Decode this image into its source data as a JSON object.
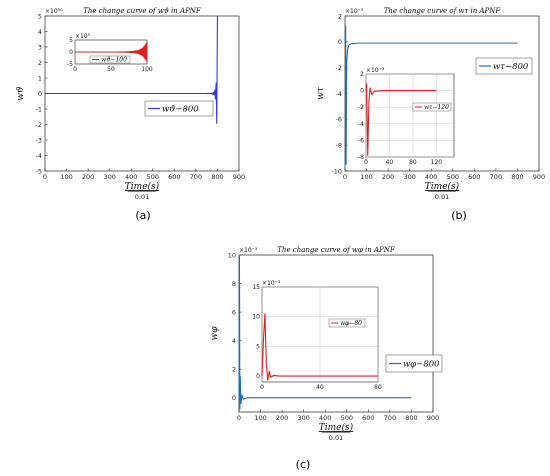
{
  "chart_data": [
    {
      "panel": "(a)",
      "type": "line",
      "title": "The change curve of wϑ in APNF",
      "ylabel": "wϑ",
      "xlabel": "Time(s)",
      "xlabel_den": "0.01",
      "xlim": [
        0,
        900
      ],
      "ylim": [
        -5,
        5
      ],
      "xticks": [
        "0",
        "100",
        "200",
        "300",
        "400",
        "500",
        "600",
        "700",
        "800",
        "900"
      ],
      "yticks": [
        "-5",
        "-4",
        "-3",
        "-2",
        "-1",
        "0",
        "1",
        "2",
        "3",
        "4",
        "5"
      ],
      "y_exponent": "×10⁵⁰",
      "grid": false,
      "legend": "wϑ−800",
      "series": [
        {
          "name": "wϑ−800",
          "color": "#3a3ac8",
          "x": [
            0,
            700,
            740,
            760,
            775,
            785,
            792,
            796,
            800
          ],
          "y": [
            0,
            0,
            0.001,
            0.005,
            0.03,
            0.1,
            0.4,
            1.0,
            5.0
          ],
          "oscillating": true
        }
      ],
      "inset": {
        "xlim": [
          0,
          100
        ],
        "ylim": [
          -5,
          5
        ],
        "xticks": [
          "0",
          "50",
          "100"
        ],
        "yticks": [
          "-5",
          "0",
          "5"
        ],
        "y_exponent": "×10⁵",
        "legend": "wϑ−100",
        "series": [
          {
            "name": "wϑ−100",
            "color": "#e02020",
            "x": [
              0,
              60,
              70,
              80,
              88,
              94,
              98,
              100
            ],
            "y": [
              0,
              0,
              0.05,
              0.2,
              0.6,
              1.5,
              3.0,
              4.0
            ],
            "oscillating": true
          }
        ]
      }
    },
    {
      "panel": "(b)",
      "type": "line",
      "title": "The change curve of wτ in APNF",
      "ylabel": "wτ",
      "xlabel": "Time(s)",
      "xlabel_den": "0.01",
      "xlim": [
        0,
        900
      ],
      "ylim": [
        -10,
        2
      ],
      "xticks": [
        "0",
        "100",
        "200",
        "300",
        "400",
        "500",
        "600",
        "700",
        "800",
        "900"
      ],
      "yticks": [
        "-10",
        "-8",
        "-6",
        "-4",
        "-2",
        "0",
        "2"
      ],
      "y_exponent": "×10⁻³",
      "grid": false,
      "legend": "wτ−800",
      "series": [
        {
          "name": "wτ−800",
          "color": "#1f6fb2",
          "x": [
            0,
            3,
            5,
            8,
            12,
            18,
            30,
            60,
            100,
            800
          ],
          "y": [
            0,
            1.2,
            -9.5,
            -1.5,
            -0.6,
            -0.25,
            -0.15,
            -0.1,
            -0.1,
            -0.1
          ]
        }
      ],
      "inset": {
        "xlim": [
          0,
          150
        ],
        "ylim": [
          -8,
          2
        ],
        "xticks": [
          "0",
          "40",
          "80",
          "120"
        ],
        "yticks": [
          "-8",
          "-6",
          "-4",
          "-2",
          "0",
          "2"
        ],
        "y_exponent": "×10⁻³",
        "grid": true,
        "legend": "wτ−120",
        "series": [
          {
            "name": "wτ−120",
            "color": "#e02020",
            "x": [
              0,
              1,
              3,
              5,
              7,
              10,
              14,
              20,
              30,
              60,
              120
            ],
            "y": [
              0,
              0.8,
              -7.8,
              -1.2,
              0.3,
              -0.5,
              -0.1,
              -0.05,
              0,
              0,
              0
            ]
          }
        ]
      }
    },
    {
      "panel": "(c)",
      "type": "line",
      "title": "The change curve of wφ in APNF",
      "ylabel": "wφ",
      "xlabel": "Time(s)",
      "xlabel_den": "0.01",
      "xlim": [
        0,
        900
      ],
      "ylim": [
        -1,
        10
      ],
      "xticks": [
        "0",
        "100",
        "200",
        "300",
        "400",
        "500",
        "600",
        "700",
        "800",
        "900"
      ],
      "yticks": [
        "0",
        "2",
        "4",
        "6",
        "8",
        "10"
      ],
      "y_exponent": "×10⁻³",
      "grid": false,
      "legend": "wφ−800",
      "series": [
        {
          "name": "wφ−800",
          "color": "#1f6fb2",
          "x": [
            0,
            2,
            4,
            6,
            9,
            14,
            20,
            40,
            100,
            800
          ],
          "y": [
            0,
            10,
            -0.8,
            1.5,
            -0.4,
            0.2,
            -0.1,
            0,
            0,
            0
          ]
        }
      ],
      "inset": {
        "xlim": [
          0,
          80
        ],
        "ylim": [
          -1,
          15
        ],
        "xticks": [
          "0",
          "40",
          "80"
        ],
        "yticks": [
          "0",
          "5",
          "10",
          "15"
        ],
        "y_exponent": "×10⁻³",
        "grid": true,
        "legend": "wφ−80",
        "series": [
          {
            "name": "wφ−80",
            "color": "#e02020",
            "x": [
              0,
              1,
              2,
              3,
              4,
              5,
              6,
              8,
              12,
              20,
              80
            ],
            "y": [
              0,
              6,
              10.5,
              2,
              -0.7,
              0.8,
              -0.2,
              0.1,
              0,
              0,
              0
            ]
          }
        ]
      }
    }
  ]
}
